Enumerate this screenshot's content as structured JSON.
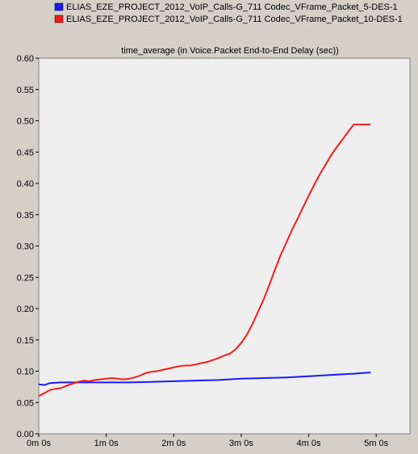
{
  "chart_data": {
    "type": "line",
    "title": "time_average (in Voice.Packet End-to-End Delay (sec))",
    "xlabel": "",
    "ylabel": "",
    "xlim": [
      0,
      330
    ],
    "ylim": [
      0,
      0.6
    ],
    "grid": false,
    "legend_position": "top",
    "y_ticks": [
      0.0,
      0.05,
      0.1,
      0.15,
      0.2,
      0.25,
      0.3,
      0.35,
      0.4,
      0.45,
      0.5,
      0.55,
      0.6
    ],
    "y_tick_labels": [
      "0.00",
      "0.05",
      "0.10",
      "0.15",
      "0.20",
      "0.25",
      "0.30",
      "0.35",
      "0.40",
      "0.45",
      "0.50",
      "0.55",
      "0.60"
    ],
    "x_ticks": [
      0,
      60,
      120,
      180,
      240,
      300
    ],
    "x_tick_labels": [
      "0m 0s",
      "1m 0s",
      "2m 0s",
      "3m 0s",
      "4m 0s",
      "5m 0s"
    ],
    "series": [
      {
        "name": "ELIAS_EZE_PROJECT_2012_VoIP_Calls-G_711 Codec_VFrame_Packet_5-DES-1",
        "color": "#1a1aff",
        "x": [
          0,
          5,
          10,
          20,
          30,
          40,
          60,
          80,
          100,
          120,
          140,
          160,
          180,
          200,
          220,
          240,
          260,
          280,
          295
        ],
        "y": [
          0.079,
          0.078,
          0.081,
          0.082,
          0.082,
          0.082,
          0.082,
          0.082,
          0.083,
          0.084,
          0.085,
          0.086,
          0.088,
          0.089,
          0.09,
          0.092,
          0.094,
          0.096,
          0.098
        ]
      },
      {
        "name": "ELIAS_EZE_PROJECT_2012_VoIP_Calls-G_711 Codec_VFrame_Packet_10-DES-1",
        "color": "#ff1a1a",
        "x": [
          0,
          5,
          10,
          15,
          20,
          25,
          30,
          35,
          40,
          45,
          50,
          55,
          60,
          65,
          70,
          75,
          80,
          85,
          90,
          95,
          100,
          105,
          110,
          115,
          120,
          125,
          130,
          135,
          140,
          145,
          150,
          155,
          160,
          165,
          170,
          175,
          180,
          185,
          190,
          195,
          200,
          205,
          210,
          215,
          220,
          225,
          230,
          235,
          240,
          245,
          250,
          255,
          260,
          265,
          270,
          275,
          280,
          285,
          290,
          295
        ],
        "y": [
          0.06,
          0.065,
          0.07,
          0.072,
          0.073,
          0.077,
          0.08,
          0.083,
          0.085,
          0.084,
          0.086,
          0.087,
          0.088,
          0.089,
          0.088,
          0.087,
          0.088,
          0.09,
          0.093,
          0.097,
          0.099,
          0.1,
          0.102,
          0.104,
          0.106,
          0.108,
          0.109,
          0.109,
          0.111,
          0.113,
          0.115,
          0.118,
          0.121,
          0.125,
          0.128,
          0.135,
          0.145,
          0.158,
          0.175,
          0.195,
          0.215,
          0.238,
          0.262,
          0.285,
          0.305,
          0.325,
          0.343,
          0.362,
          0.38,
          0.398,
          0.415,
          0.43,
          0.445,
          0.458,
          0.47,
          0.482,
          0.494,
          0.494,
          0.494,
          0.494
        ]
      }
    ]
  }
}
